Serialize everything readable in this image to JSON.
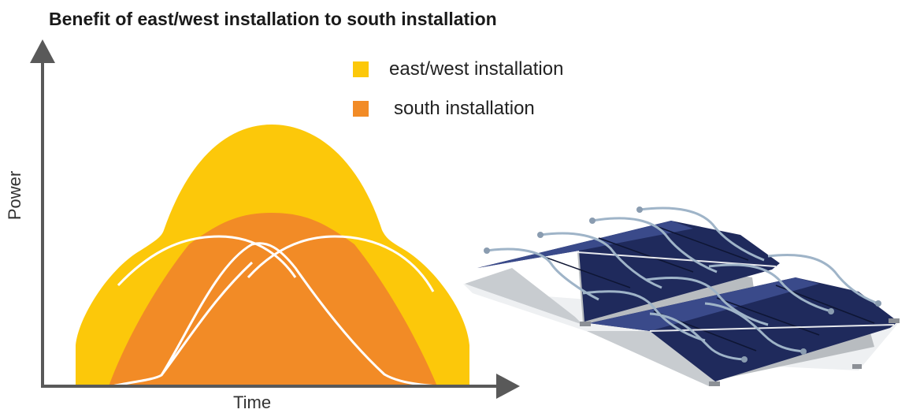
{
  "title": "Benefit of east/west installation to south installation",
  "legend": {
    "east_west": "east/west installation",
    "south": "south installation"
  },
  "axes": {
    "ylabel": "Power",
    "xlabel": "Time"
  },
  "colors": {
    "east_west": "#FCC80A",
    "south": "#F28B26",
    "curve_outline": "#FFFFFF",
    "axis": "#595959"
  },
  "panels_picture": "flat-roof-solar-panel-array-icon"
}
